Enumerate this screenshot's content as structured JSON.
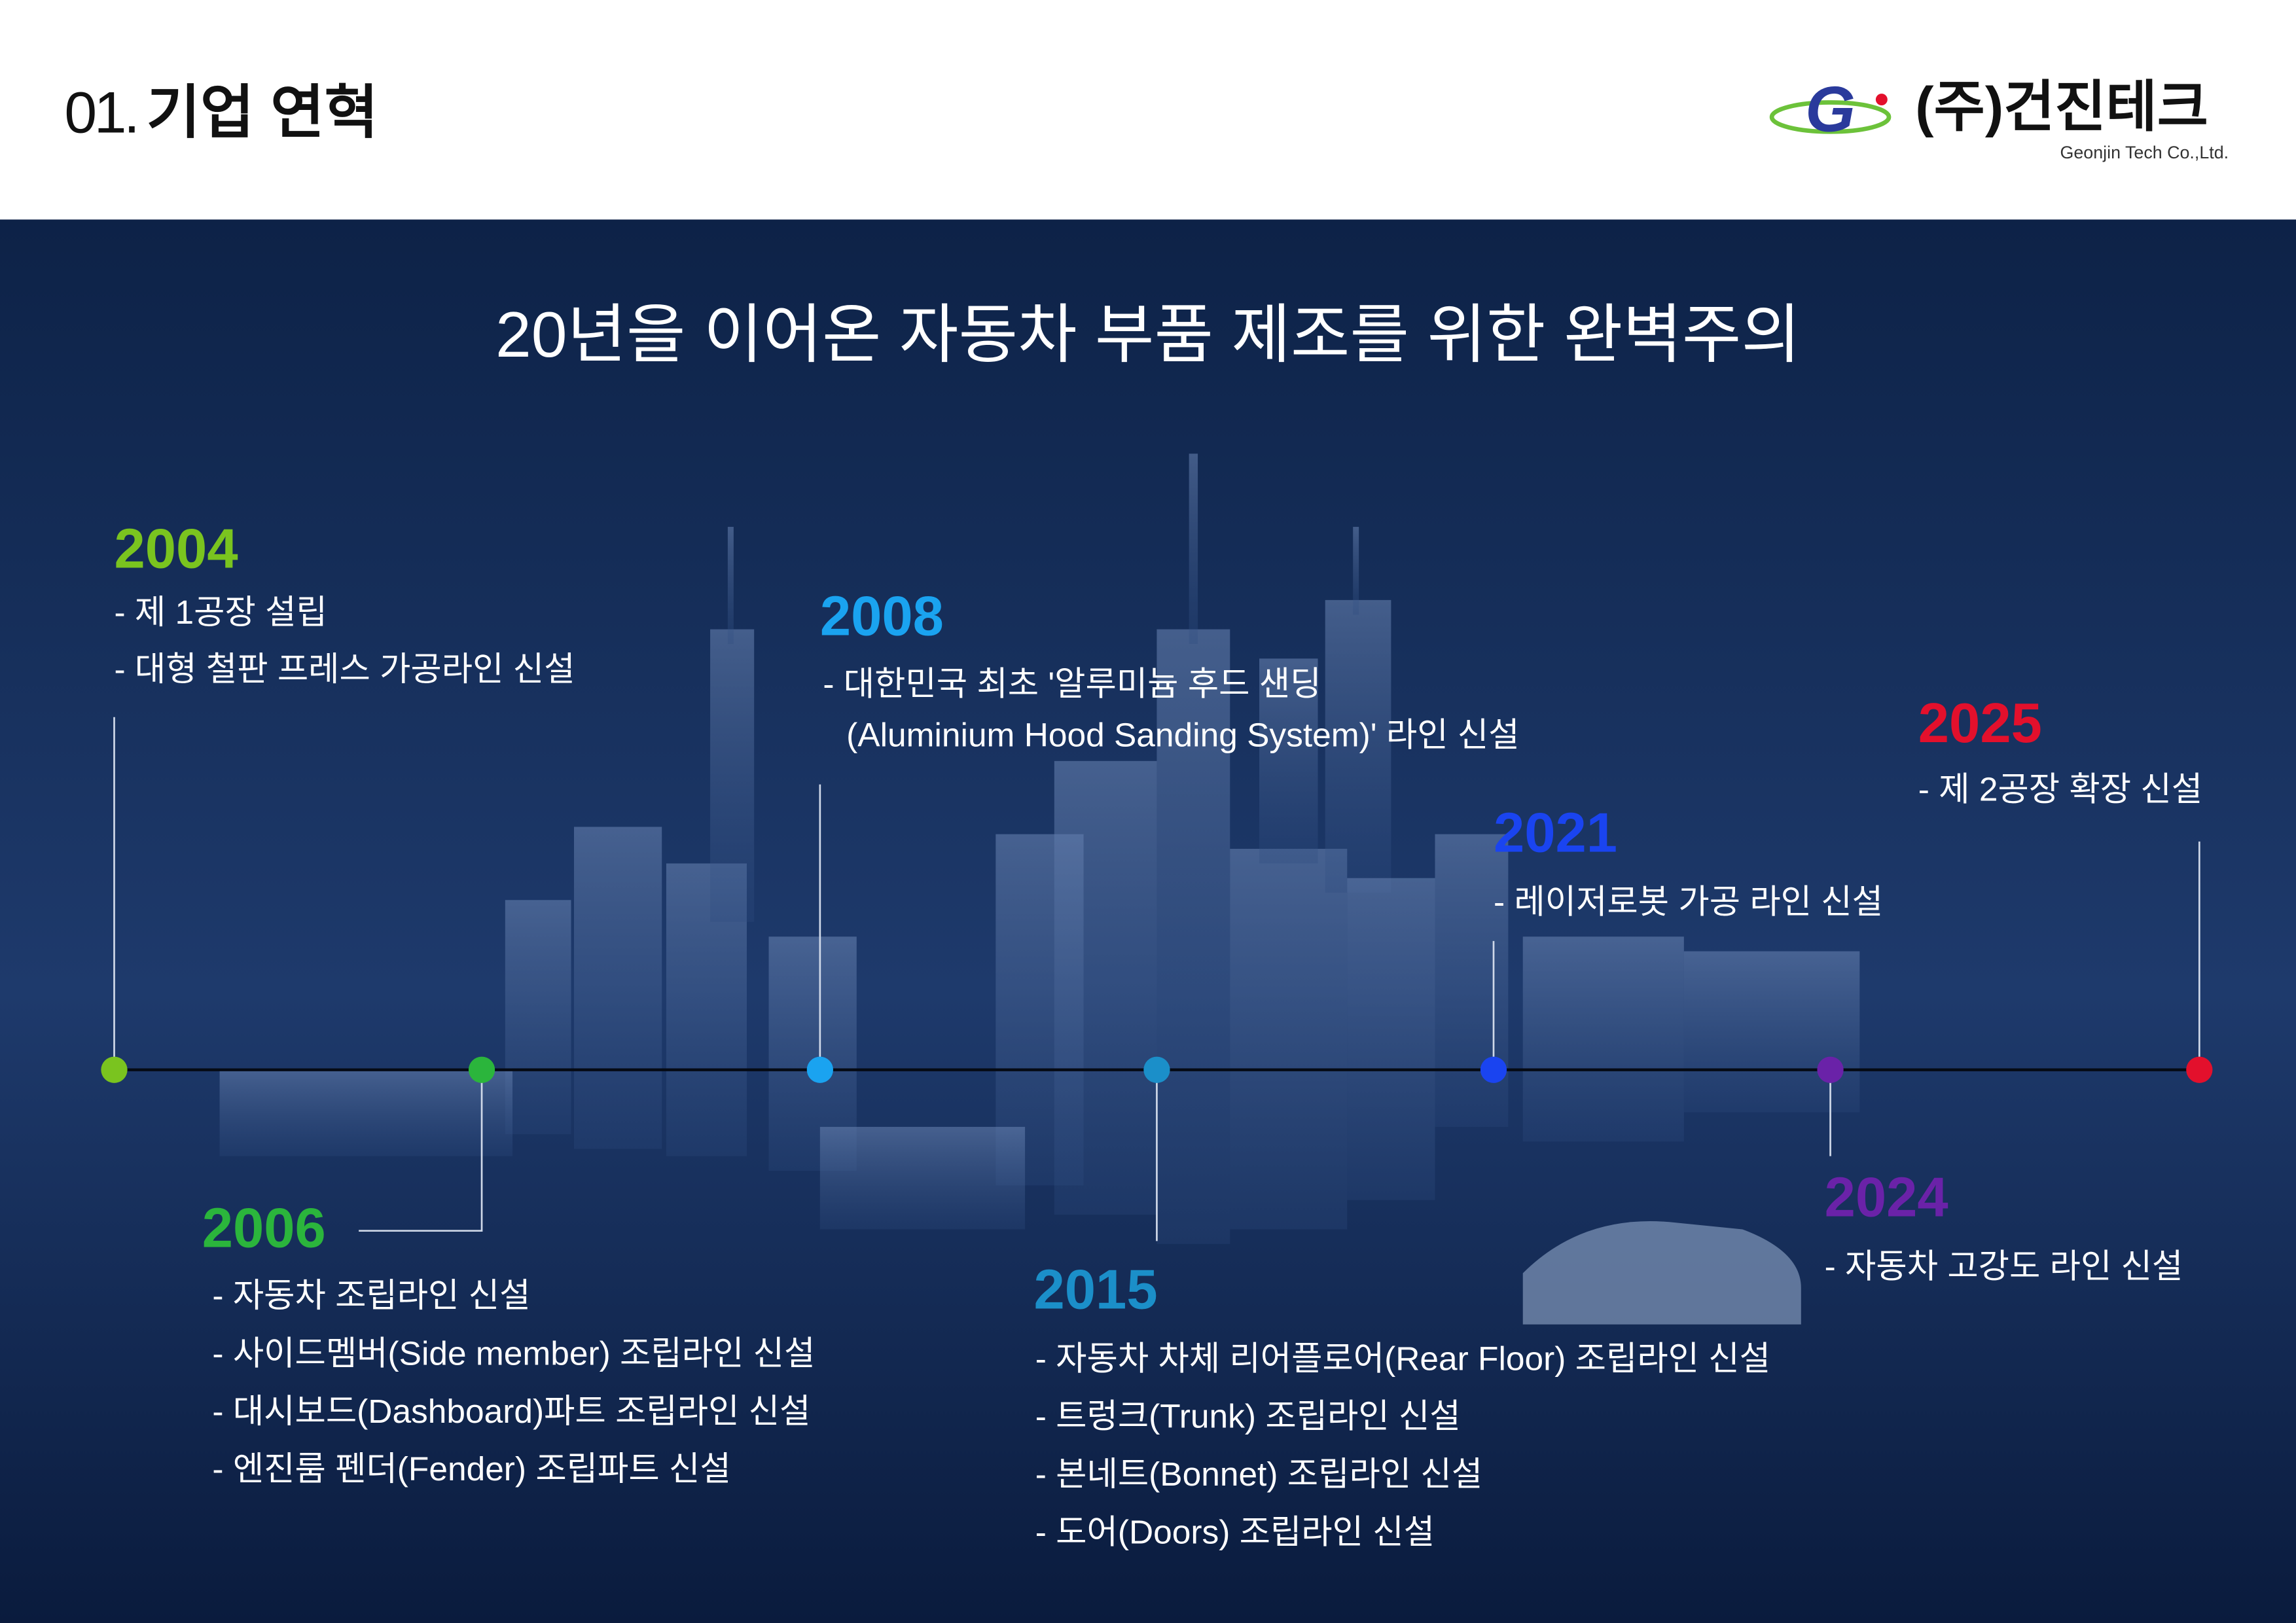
{
  "header": {
    "section_number": "01.",
    "section_title": "기업 연혁",
    "logo_mark": "G",
    "company_name": "(주)건진테크",
    "company_name_en": "Geonjin Tech Co.,Ltd."
  },
  "banner": {
    "title": "20년을 이어온 자동차 부품 제조를 위한 완벽주의"
  },
  "timeline": [
    {
      "year": "2004",
      "color": "#7ac41f",
      "items": [
        "- 제 1공장 설립",
        "- 대형 철판 프레스 가공라인 신설"
      ]
    },
    {
      "year": "2006",
      "color": "#2bb53c",
      "items": [
        "- 자동차 조립라인 신설",
        "- 사이드멤버(Side member) 조립라인 신설",
        "- 대시보드(Dashboard)파트 조립라인 신설",
        "- 엔진룸 펜더(Fender) 조립파트 신설"
      ]
    },
    {
      "year": "2008",
      "color": "#1aa3f0",
      "items": [
        "- 대한민국 최초 '알루미늄 후드 샌딩",
        "(Aluminium Hood Sanding System)' 라인 신설"
      ]
    },
    {
      "year": "2015",
      "color": "#1b8fc9",
      "items": [
        "- 자동차 차체 리어플로어(Rear Floor) 조립라인 신설",
        "- 트렁크(Trunk) 조립라인 신설",
        "- 본네트(Bonnet) 조립라인 신설",
        "- 도어(Doors) 조립라인 신설"
      ]
    },
    {
      "year": "2021",
      "color": "#1a44f0",
      "items": [
        "- 레이저로봇 가공 라인 신설"
      ]
    },
    {
      "year": "2024",
      "color": "#6a22a8",
      "items": [
        "- 자동차 고강도 라인 신설"
      ]
    },
    {
      "year": "2025",
      "color": "#e3102c",
      "items": [
        "- 제 2공장 확장 신설"
      ]
    }
  ]
}
